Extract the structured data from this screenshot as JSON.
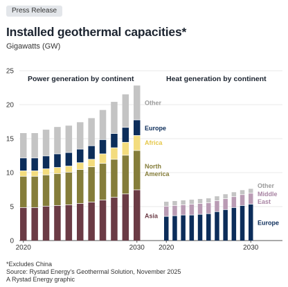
{
  "badge": "Press Release",
  "title": "Installed geothermal capacities*",
  "subtitle": "Gigawatts (GW)",
  "footnotes": [
    "*Excludes China",
    "Source: Rystad Energy's Geothermal Solution, November 2025",
    "A Rystad Energy graphic"
  ],
  "colors": {
    "Asia": "#6b3b45",
    "North America": "#857d3a",
    "Africa": "#f3dc7e",
    "Europe": "#0c2d5a",
    "Middle East": "#b99bb4",
    "Other": "#c4c4c4"
  },
  "chart_data": [
    {
      "type": "bar",
      "stacked": true,
      "title": "Power generation by continent",
      "x": [
        2020,
        2021,
        2022,
        2023,
        2024,
        2025,
        2026,
        2027,
        2028,
        2029,
        2030
      ],
      "x_tick_labels": [
        "2020",
        "2030"
      ],
      "ylim": [
        0,
        25
      ],
      "y_ticks": [
        0,
        5,
        10,
        15,
        20,
        25
      ],
      "grid": "horizontal",
      "series": [
        {
          "name": "Asia",
          "values": [
            4.9,
            4.9,
            5.1,
            5.2,
            5.3,
            5.5,
            5.7,
            6.0,
            6.4,
            6.9,
            7.5
          ]
        },
        {
          "name": "North America",
          "values": [
            4.6,
            4.6,
            4.6,
            4.7,
            4.8,
            5.0,
            5.2,
            5.4,
            5.6,
            5.7,
            5.8
          ]
        },
        {
          "name": "Africa",
          "values": [
            0.8,
            0.8,
            0.9,
            0.9,
            0.9,
            1.0,
            1.1,
            1.4,
            1.7,
            1.9,
            2.2
          ]
        },
        {
          "name": "Europe",
          "values": [
            1.9,
            1.9,
            1.9,
            2.0,
            2.0,
            2.0,
            2.0,
            2.1,
            2.1,
            2.2,
            2.3
          ]
        },
        {
          "name": "Other",
          "values": [
            3.7,
            3.7,
            3.9,
            4.0,
            4.0,
            4.0,
            4.1,
            4.4,
            4.7,
            4.9,
            5.1
          ]
        }
      ]
    },
    {
      "type": "bar",
      "stacked": true,
      "title": "Heat generation by continent",
      "x": [
        2020,
        2021,
        2022,
        2023,
        2024,
        2025,
        2026,
        2027,
        2028,
        2029,
        2030
      ],
      "x_tick_labels": [
        "2020",
        "2030"
      ],
      "ylim": [
        0,
        25
      ],
      "series": [
        {
          "name": "Europe",
          "values": [
            3.6,
            3.7,
            3.8,
            3.8,
            3.9,
            4.0,
            4.3,
            4.6,
            4.9,
            5.2,
            5.4
          ]
        },
        {
          "name": "Middle East",
          "values": [
            1.5,
            1.5,
            1.5,
            1.6,
            1.6,
            1.6,
            1.6,
            1.6,
            1.6,
            1.6,
            1.6
          ]
        },
        {
          "name": "Other",
          "values": [
            0.7,
            0.7,
            0.7,
            0.7,
            0.7,
            0.7,
            0.7,
            0.7,
            0.7,
            0.7,
            0.7
          ]
        }
      ]
    }
  ]
}
